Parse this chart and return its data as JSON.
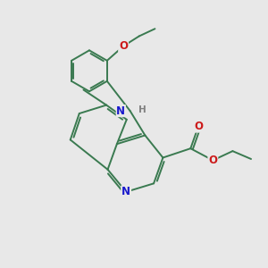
{
  "background_color": "#e8e8e8",
  "bond_color": "#3a7a50",
  "bond_width": 1.4,
  "N_color": "#1a1acc",
  "O_color": "#cc1a1a",
  "H_color": "#808080",
  "text_fontsize": 8.5,
  "figsize": [
    3.0,
    3.0
  ],
  "dpi": 100,
  "xlim": [
    0,
    10
  ],
  "ylim": [
    0,
    10
  ]
}
